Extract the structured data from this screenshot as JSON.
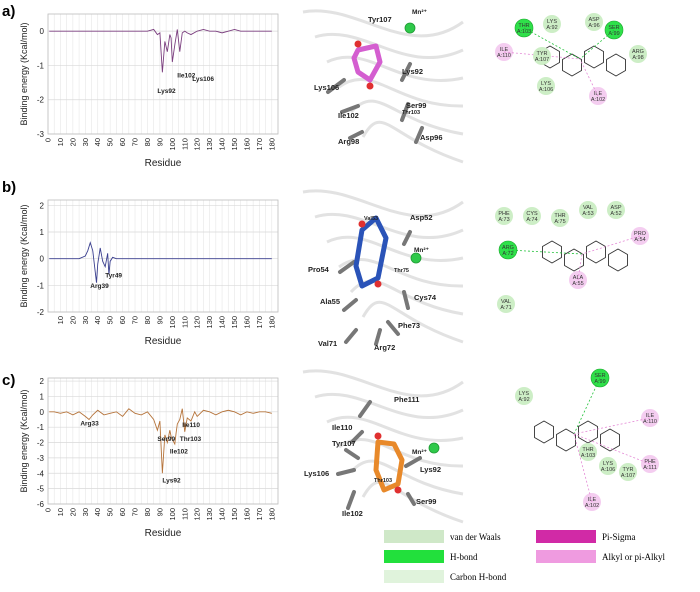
{
  "panels": [
    {
      "label": "a)",
      "chart_data": {
        "type": "line",
        "ylabel": "Binding energy (Kcal/mol)",
        "xlabel": "Residue",
        "ylim": [
          -3,
          0.5
        ],
        "yticks": [
          0,
          -1,
          -2,
          -3
        ],
        "xlim": [
          0,
          185
        ],
        "xticks": [
          0,
          10,
          20,
          30,
          40,
          50,
          60,
          70,
          80,
          90,
          100,
          110,
          120,
          130,
          140,
          150,
          160,
          170,
          180
        ],
        "color": "#7b3f7f",
        "series": [
          {
            "x": [
              1,
              5,
              10,
              15,
              20,
              25,
              30,
              35,
              40,
              45,
              50,
              55,
              60,
              65,
              70,
              75,
              80,
              85,
              88,
              90,
              92,
              94,
              96,
              98,
              99,
              100,
              102,
              104,
              106,
              108,
              110,
              112,
              115,
              120,
              125,
              130,
              135,
              140,
              145,
              150,
              155,
              160,
              165,
              170,
              175,
              180
            ],
            "values": [
              0,
              0,
              0,
              0,
              0,
              0,
              0,
              0,
              0,
              0,
              0,
              0,
              0,
              0,
              0,
              0,
              0,
              0.05,
              -0.1,
              -0.05,
              -1.2,
              -0.3,
              -0.6,
              -0.1,
              -0.2,
              -0.9,
              -0.4,
              0.05,
              -0.6,
              -0.05,
              0,
              -0.05,
              -0.1,
              0,
              0.05,
              0,
              0,
              -0.05,
              0,
              0.05,
              0,
              0,
              0,
              0,
              0,
              0
            ]
          }
        ],
        "annotations": [
          "Ile102",
          "Lys106",
          "Lys92"
        ]
      },
      "structure_labels": [
        "Tyr107",
        "Mn²⁺",
        "Lys92",
        "Lys106",
        "Thr103",
        "Ile102",
        "Ser99",
        "Arg98",
        "Asp96"
      ],
      "ligand_color": "#d45ed0",
      "residues_2d": [
        "THR A:103",
        "LYS A:92",
        "ASP A:96",
        "SER A:99",
        "ILE A:110",
        "TYR A:107",
        "LYS A:106",
        "ARG A:98",
        "ILE A:102"
      ]
    },
    {
      "label": "b)",
      "chart_data": {
        "type": "line",
        "ylabel": "Binding energy (Kcal/mol)",
        "xlabel": "Residue",
        "ylim": [
          -2,
          2.2
        ],
        "yticks": [
          2,
          1,
          0,
          -1,
          -2
        ],
        "xlim": [
          0,
          185
        ],
        "xticks": [
          10,
          20,
          30,
          40,
          50,
          60,
          70,
          80,
          90,
          100,
          110,
          120,
          130,
          140,
          150,
          160,
          170,
          180
        ],
        "color": "#3a3f8f",
        "series": [
          {
            "x": [
              1,
              5,
              10,
              15,
              20,
              25,
              30,
              32,
              34,
              36,
              38,
              39,
              40,
              42,
              44,
              46,
              48,
              49,
              50,
              52,
              55,
              60,
              70,
              80,
              90,
              100,
              110,
              120,
              130,
              140,
              150,
              160,
              170,
              180
            ],
            "values": [
              0,
              0,
              0,
              0,
              0,
              0,
              0.1,
              0.3,
              0.6,
              0.3,
              -0.5,
              -0.9,
              -0.2,
              0.4,
              -0.1,
              -0.3,
              0.2,
              -0.6,
              -0.1,
              0.05,
              0,
              0,
              0,
              0,
              0,
              0,
              0,
              0,
              0,
              0,
              0,
              0,
              0,
              0
            ]
          }
        ],
        "annotations": [
          "Arg39",
          "Tyr49"
        ]
      },
      "structure_labels": [
        "Val53",
        "Asp52",
        "Pro54",
        "Mn²⁺",
        "Thr75",
        "Ala55",
        "Cys74",
        "Val71",
        "Phe73",
        "Arg72"
      ],
      "ligand_color": "#2a53b8",
      "residues_2d": [
        "PHE A:73",
        "CYS A:74",
        "THR A:75",
        "VAL A:53",
        "ASP A:52",
        "PRO A:54",
        "ARG A:72",
        "VAL A:71",
        "ALA A:55"
      ]
    },
    {
      "label": "c)",
      "chart_data": {
        "type": "line",
        "ylabel": "Binding energy (Kcal/mol)",
        "xlabel": "Residue",
        "ylim": [
          -6,
          2.2
        ],
        "yticks": [
          2,
          1,
          0,
          -1,
          -2,
          -3,
          -4,
          -5,
          -6
        ],
        "xlim": [
          0,
          185
        ],
        "xticks": [
          0,
          10,
          20,
          30,
          40,
          50,
          60,
          70,
          80,
          90,
          100,
          110,
          120,
          130,
          140,
          150,
          160,
          170,
          180
        ],
        "color": "#b5733a",
        "series": [
          {
            "x": [
              1,
              5,
              10,
              15,
              20,
              25,
              30,
              33,
              36,
              40,
              45,
              50,
              55,
              60,
              65,
              70,
              75,
              80,
              85,
              88,
              90,
              92,
              94,
              96,
              98,
              99,
              100,
              102,
              103,
              104,
              106,
              108,
              110,
              112,
              115,
              118,
              120,
              125,
              130,
              135,
              140,
              145,
              150,
              155,
              160,
              165,
              170,
              175,
              180
            ],
            "values": [
              0,
              0,
              -0.1,
              0,
              -0.2,
              0,
              -0.3,
              -0.5,
              -0.2,
              0.1,
              -0.2,
              -0.1,
              0,
              -0.3,
              0.2,
              -0.1,
              -0.2,
              0,
              -0.5,
              -1.2,
              -0.6,
              -4.0,
              -1.5,
              -2.0,
              -1.2,
              -1.6,
              -1.8,
              -2.1,
              -1.4,
              -0.8,
              -0.5,
              0.2,
              -1.3,
              -0.4,
              -0.6,
              0,
              -0.3,
              0.1,
              0,
              -0.2,
              0,
              0.1,
              0,
              -0.2,
              0,
              -0.1,
              0,
              0,
              -0.1
            ]
          }
        ],
        "annotations": [
          "Arg33",
          "Ile110",
          "Ser99",
          "Thr103",
          "Ile102",
          "Lys92"
        ]
      },
      "structure_labels": [
        "Phe111",
        "Mn²⁺",
        "Ile110",
        "Tyr107",
        "Lys92",
        "Lys106",
        "Thr103",
        "Ser99",
        "Ile102"
      ],
      "ligand_color": "#e8892a",
      "residues_2d": [
        "LYS A:92",
        "SER A:99",
        "ILE A:110",
        "THR A:103",
        "LYS A:106",
        "TYR A:107",
        "PHE A:111",
        "ILE A:102"
      ]
    }
  ],
  "legend": {
    "items": [
      {
        "label": "van der Waals",
        "color": "#cfe8c8"
      },
      {
        "label": "Pi-Sigma",
        "color": "#d12aa6"
      },
      {
        "label": "H-bond",
        "color": "#22e03c"
      },
      {
        "label": "Alkyl or pi-Alkyl",
        "color": "#ef9be0"
      },
      {
        "label": "Carbon H-bond",
        "color": "#e0f3dc"
      }
    ]
  }
}
